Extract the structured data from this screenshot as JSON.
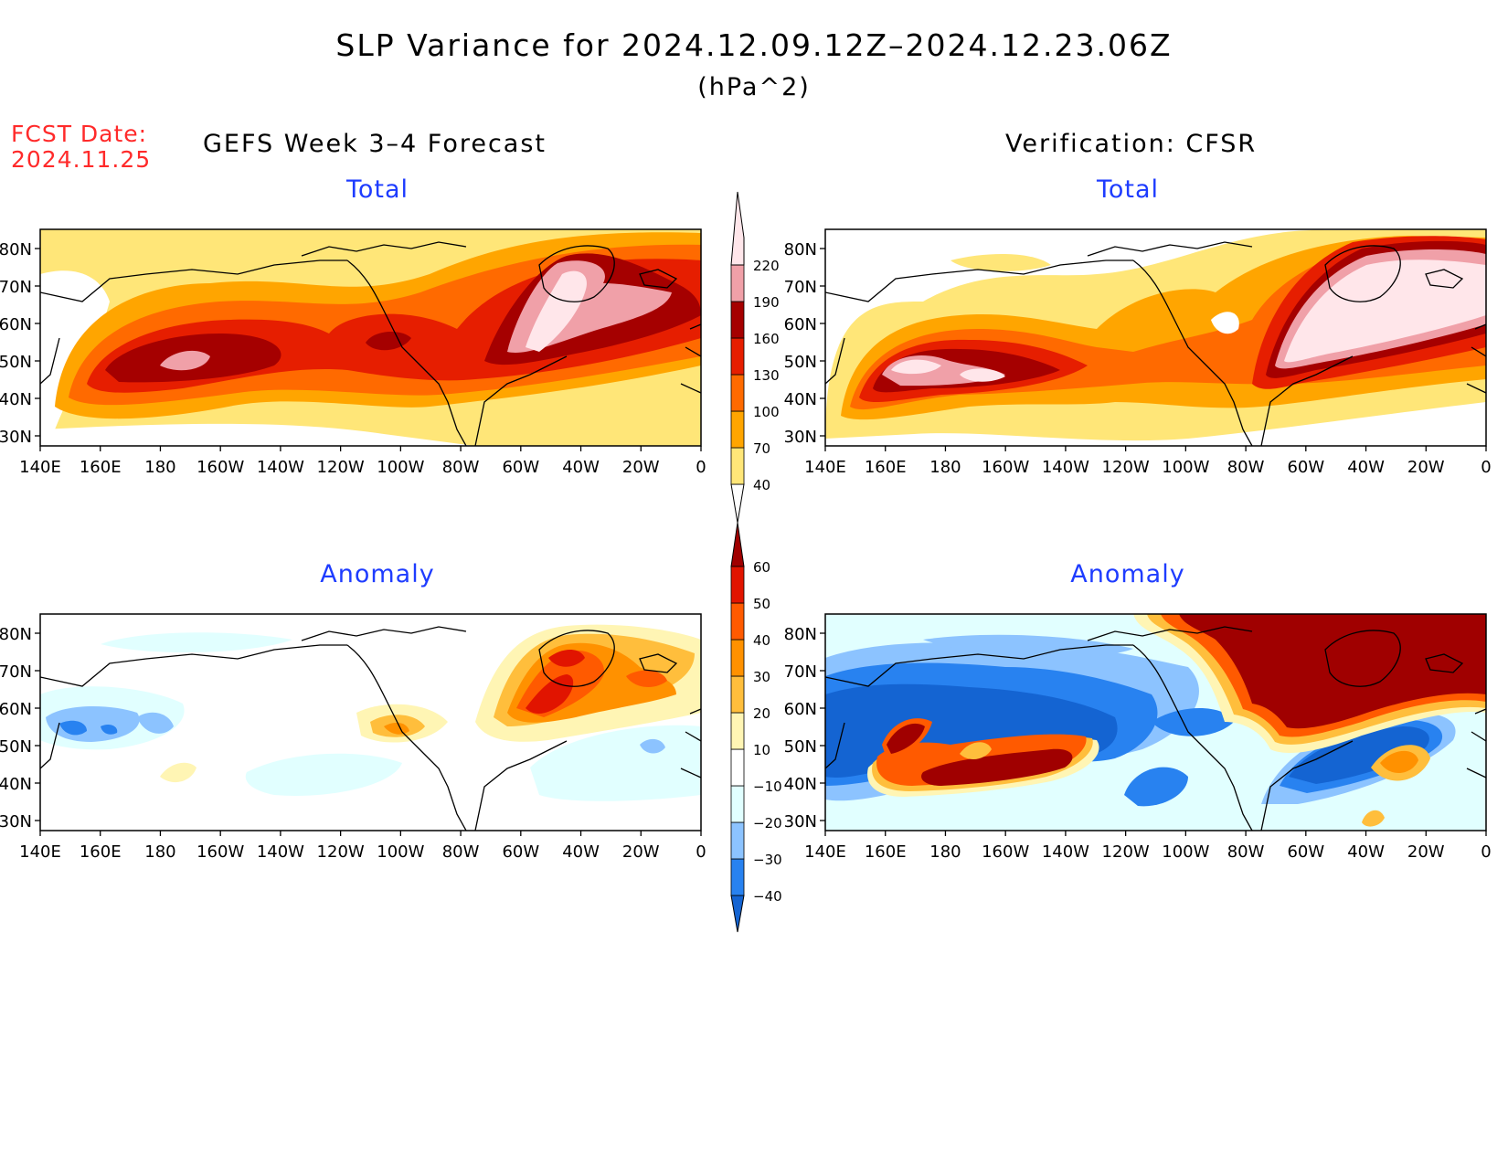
{
  "header": {
    "title": "SLP Variance for 2024.12.09.12Z–2024.12.23.06Z",
    "units": "(hPa^2)",
    "fcst_label": "FCST Date:",
    "fcst_date": "2024.11.25"
  },
  "columns": {
    "left": "GEFS Week 3–4 Forecast",
    "right": "Verification: CFSR"
  },
  "panels": [
    {
      "id": "gefs-total",
      "title": "Total"
    },
    {
      "id": "cfsr-total",
      "title": "Total"
    },
    {
      "id": "gefs-anomaly",
      "title": "Anomaly"
    },
    {
      "id": "cfsr-anomaly",
      "title": "Anomaly"
    }
  ],
  "axes": {
    "lon_labels": [
      "140E",
      "160E",
      "180",
      "160W",
      "140W",
      "120W",
      "100W",
      "80W",
      "60W",
      "40W",
      "20W",
      "0"
    ],
    "lat_labels": [
      "80N",
      "70N",
      "60N",
      "50N",
      "40N",
      "30N"
    ]
  },
  "colorbars": {
    "total": {
      "levels": [
        "40",
        "70",
        "100",
        "130",
        "160",
        "190",
        "220"
      ],
      "colors": [
        "#ffe678",
        "#ffa500",
        "#ff6a00",
        "#e61e00",
        "#a50000",
        "#f0a0a8",
        "#ffe6ea"
      ]
    },
    "anomaly": {
      "levels": [
        "−40",
        "−30",
        "−20",
        "−10",
        "10",
        "20",
        "30",
        "40",
        "50",
        "60"
      ],
      "colors": [
        "#1464d2",
        "#2882f0",
        "#8cc3ff",
        "#e1ffff",
        "#ffffff",
        "#fff5b4",
        "#ffbe3c",
        "#ff9100",
        "#ff5a00",
        "#e11400",
        "#a00000"
      ]
    }
  },
  "colors": {
    "title_blue": "#1e3cff",
    "fcst_red": "#ff2a2a"
  }
}
